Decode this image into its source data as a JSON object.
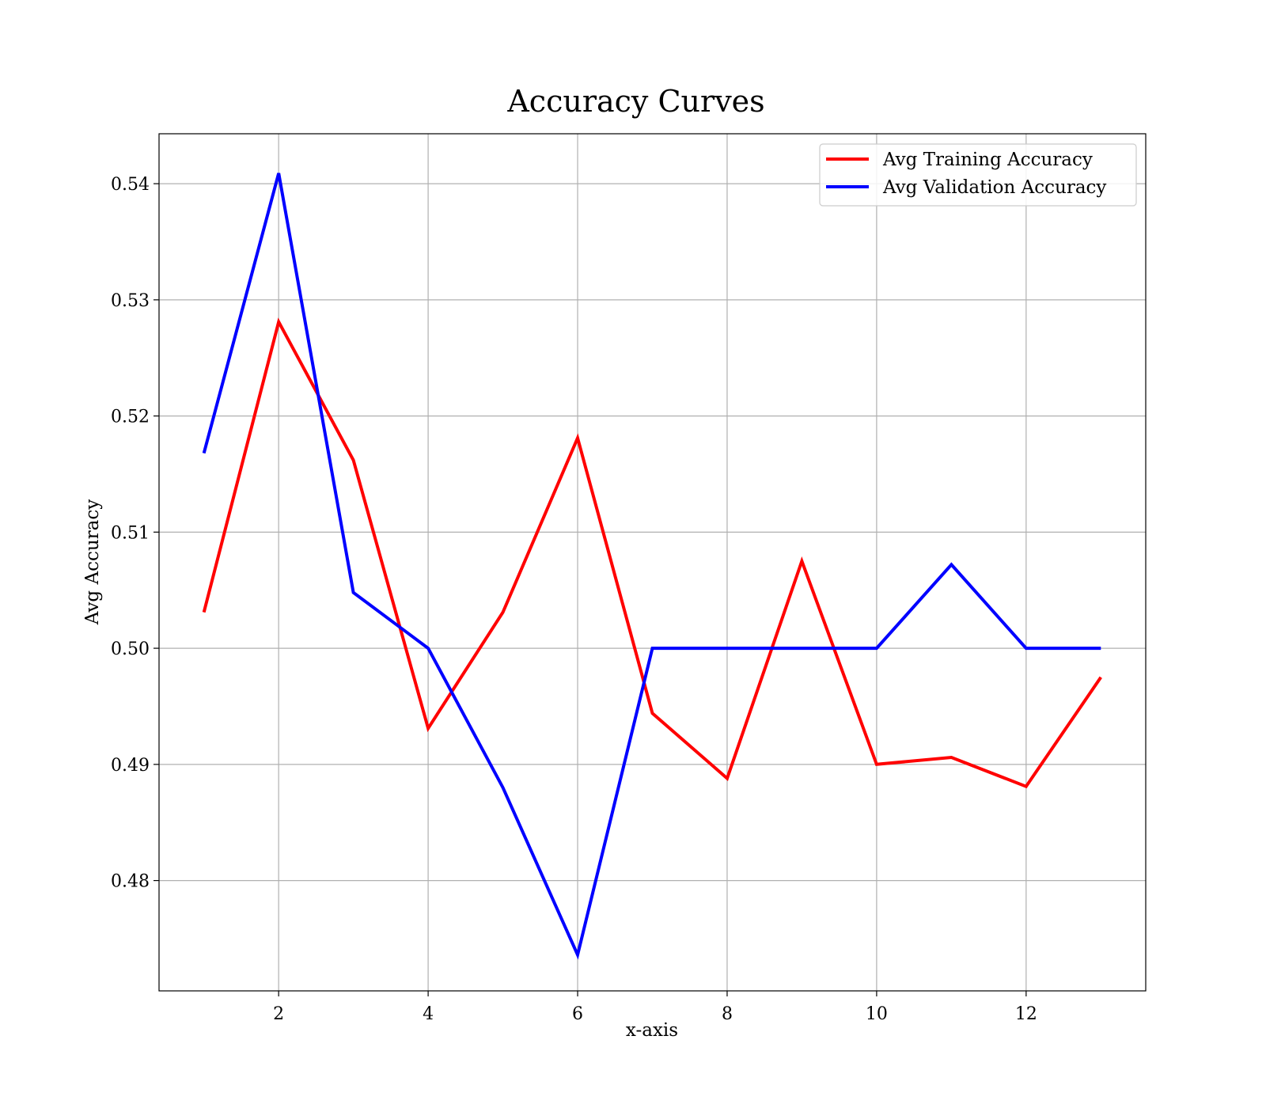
{
  "chart_data": {
    "type": "line",
    "title": "Accuracy Curves",
    "xlabel": "x-axis",
    "ylabel": "Avg Accuracy",
    "xlim": [
      0.4,
      13.6
    ],
    "ylim": [
      0.4705,
      0.5443
    ],
    "xticks": [
      2,
      4,
      6,
      8,
      10,
      12
    ],
    "yticks": [
      0.48,
      0.49,
      0.5,
      0.51,
      0.52,
      0.53,
      0.54
    ],
    "ytick_labels": [
      "0.48",
      "0.49",
      "0.50",
      "0.51",
      "0.52",
      "0.53",
      "0.54"
    ],
    "grid": true,
    "legend_position": "top-right",
    "x": [
      1,
      2,
      3,
      4,
      5,
      6,
      7,
      8,
      9,
      10,
      11,
      12,
      13
    ],
    "series": [
      {
        "name": "Avg Training Accuracy",
        "color": "#ff0000",
        "values": [
          0.5031,
          0.5281,
          0.5162,
          0.4931,
          0.5031,
          0.5181,
          0.4944,
          0.4888,
          0.5075,
          0.49,
          0.4906,
          0.4881,
          0.4975
        ]
      },
      {
        "name": "Avg Validation Accuracy",
        "color": "#0000ff",
        "values": [
          0.5168,
          0.5409,
          0.5048,
          0.5,
          0.488,
          0.4736,
          0.5,
          0.5,
          0.5,
          0.5,
          0.5072,
          0.5,
          0.5
        ]
      }
    ]
  }
}
